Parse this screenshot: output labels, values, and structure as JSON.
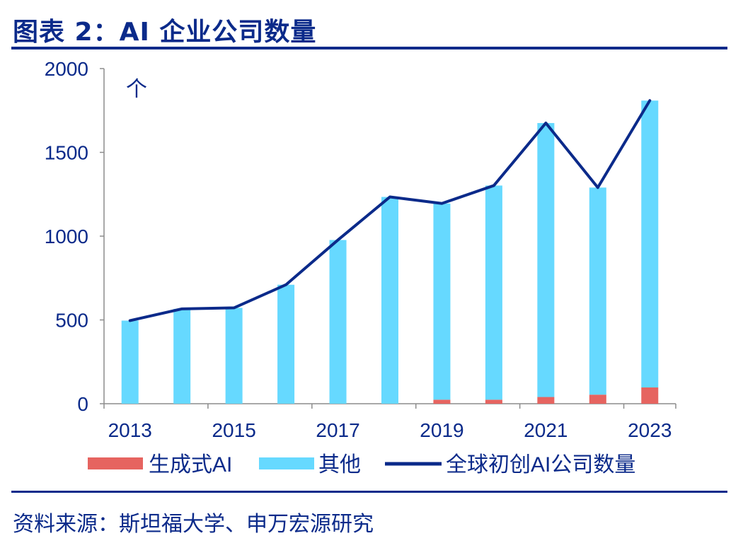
{
  "header": {
    "title": "图表 2：AI 企业公司数量"
  },
  "footer": {
    "source": "资料来源：斯坦福大学、申万宏源研究"
  },
  "colors": {
    "brand_navy": "#0b2a8a",
    "bar_other": "#66d9ff",
    "bar_genai": "#e66460",
    "line": "#0b2a8a"
  },
  "chart_data": {
    "type": "bar",
    "unit_label": "个",
    "categories": [
      "2013",
      "2014",
      "2015",
      "2016",
      "2017",
      "2018",
      "2019",
      "2020",
      "2021",
      "2022",
      "2023"
    ],
    "x_tick_labels": [
      "2013",
      "2015",
      "2017",
      "2019",
      "2021",
      "2023"
    ],
    "ylim": [
      0,
      2000
    ],
    "y_ticks": [
      "0",
      "500",
      "1000",
      "1500",
      "2000"
    ],
    "legend_position": "bottom",
    "series": [
      {
        "name": "生成式AI",
        "kind": "bar",
        "stack": "s",
        "values": [
          0,
          0,
          0,
          0,
          0,
          0,
          24,
          24,
          40,
          54,
          97
        ]
      },
      {
        "name": "其他",
        "kind": "bar",
        "stack": "s",
        "values": [
          496,
          566,
          572,
          710,
          977,
          1234,
          1171,
          1278,
          1635,
          1236,
          1712
        ]
      },
      {
        "name": "全球初创AI公司数量",
        "kind": "line",
        "values": [
          496,
          566,
          572,
          710,
          977,
          1234,
          1195,
          1302,
          1675,
          1290,
          1809
        ]
      }
    ]
  }
}
